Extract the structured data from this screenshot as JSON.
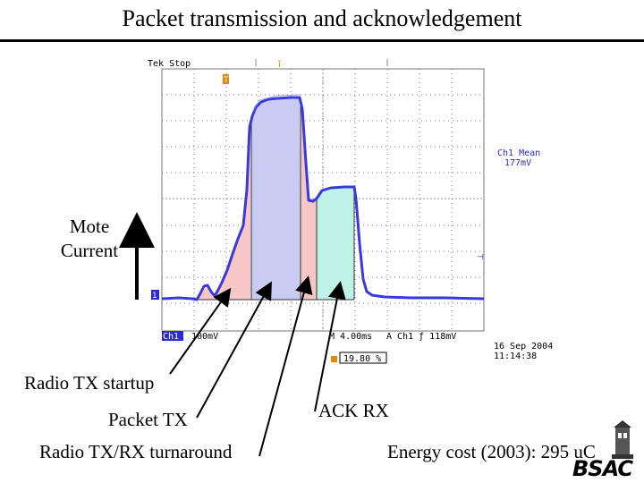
{
  "slide": {
    "title": "Packet transmission and acknowledgement",
    "y_label_line1": "Mote",
    "y_label_line2": "Current"
  },
  "annotations": {
    "radio_tx_startup": "Radio TX startup",
    "packet_tx": "Packet TX",
    "turnaround": "Radio TX/RX turnaround",
    "ack_rx": "ACK RX",
    "energy_cost": "Energy cost (2003): 295 uC"
  },
  "scope": {
    "status": "Tek Stop",
    "mean_label": "Ch1 Mean",
    "mean_value": "177mV",
    "channel": "Ch1",
    "scale": "100mV",
    "timebase": "M 4.00ms",
    "trigger": "A  Ch1  ƒ  118mV",
    "date": "16 Sep  2004",
    "time": "11:14:38",
    "trigger_pos": "19.80 %",
    "trace_color": "#3a3adc",
    "grid_color": "#555555"
  },
  "logo": {
    "text": "BSAC"
  },
  "colors": {
    "startup": "#f7c6c6",
    "packet": "#c9cbf2",
    "ack": "#bff2e6",
    "arrow": "#000000"
  }
}
